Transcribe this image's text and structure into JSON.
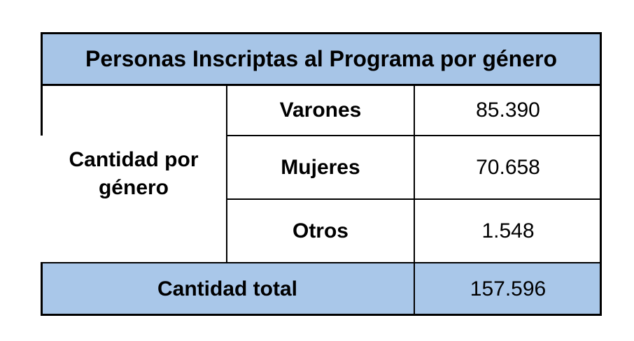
{
  "table": {
    "title": "Personas Inscriptas al Programa por género",
    "group_label_line1": "Cantidad por",
    "group_label_line2": "género",
    "rows": [
      {
        "label": "Varones",
        "value": "85.390"
      },
      {
        "label": "Mujeres",
        "value": "70.658"
      },
      {
        "label": "Otros",
        "value": "1.548"
      }
    ],
    "total_label": "Cantidad total",
    "total_value": "157.596"
  },
  "colors": {
    "header_bg": "#a7c5e7",
    "total_bg": "#a9c7e9",
    "border": "#000000"
  }
}
